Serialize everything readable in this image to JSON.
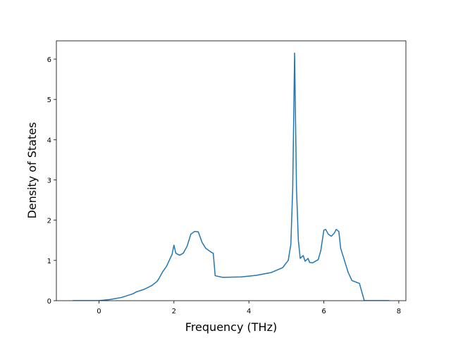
{
  "chart_data": {
    "type": "line",
    "xlabel": "Frequency (THz)",
    "ylabel": "Density of States",
    "xlim": [
      -1.137,
      8.19
    ],
    "ylim": [
      0,
      6.455
    ],
    "xticks": [
      0,
      2,
      4,
      6,
      8
    ],
    "yticks": [
      0,
      1,
      2,
      3,
      4,
      5,
      6
    ],
    "series": [
      {
        "color": "#1f77b4",
        "x": [
          -0.7,
          0,
          0.3,
          0.6,
          0.9,
          1.0,
          1.2,
          1.4,
          1.55,
          1.6,
          1.7,
          1.8,
          1.9,
          1.95,
          2.0,
          2.05,
          2.15,
          2.25,
          2.35,
          2.45,
          2.55,
          2.65,
          2.75,
          2.85,
          3.0,
          3.05,
          3.1,
          3.3,
          3.8,
          4.2,
          4.6,
          4.9,
          5.05,
          5.12,
          5.17,
          5.22,
          5.27,
          5.32,
          5.37,
          5.45,
          5.5,
          5.58,
          5.62,
          5.7,
          5.85,
          5.92,
          6.0,
          6.05,
          6.12,
          6.2,
          6.28,
          6.33,
          6.4,
          6.45,
          6.55,
          6.65,
          6.75,
          6.95,
          7.05,
          7.08,
          7.75
        ],
        "values": [
          0,
          0,
          0.03,
          0.08,
          0.17,
          0.22,
          0.28,
          0.37,
          0.48,
          0.55,
          0.72,
          0.85,
          1.05,
          1.15,
          1.38,
          1.18,
          1.13,
          1.18,
          1.35,
          1.65,
          1.72,
          1.71,
          1.45,
          1.3,
          1.2,
          1.18,
          0.62,
          0.58,
          0.59,
          0.63,
          0.7,
          0.82,
          1.0,
          1.4,
          2.8,
          6.15,
          2.8,
          1.5,
          1.05,
          1.12,
          0.98,
          1.05,
          0.95,
          0.94,
          1.02,
          1.25,
          1.75,
          1.77,
          1.65,
          1.6,
          1.68,
          1.77,
          1.72,
          1.3,
          1.0,
          0.7,
          0.5,
          0.43,
          0.1,
          0,
          0
        ]
      }
    ]
  }
}
